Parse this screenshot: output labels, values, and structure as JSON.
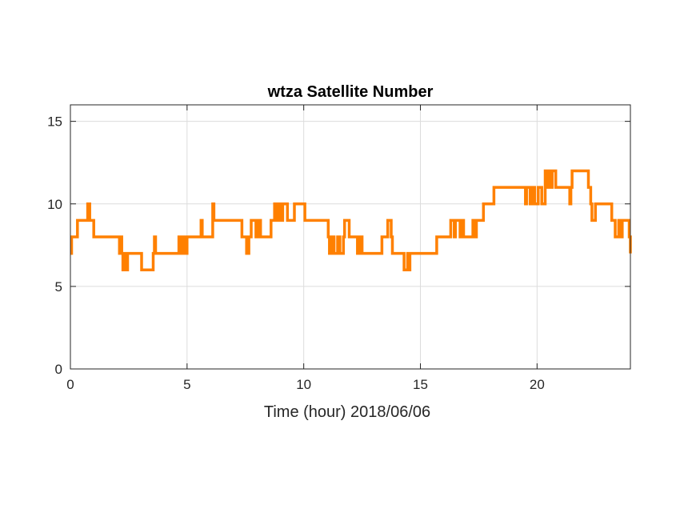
{
  "chart_data": {
    "type": "line",
    "title": "wtza Satellite Number",
    "xlabel": "Time (hour)  2018/06/06",
    "ylabel": "",
    "xlim": [
      0,
      24
    ],
    "ylim": [
      0,
      16
    ],
    "xticks": [
      0,
      5,
      10,
      15,
      20
    ],
    "yticks": [
      0,
      5,
      10,
      15
    ],
    "xtick_labels": [
      "0",
      "5",
      "10",
      "15",
      "20"
    ],
    "ytick_labels": [
      "0",
      "5",
      "10",
      "15"
    ],
    "grid": true,
    "line_style": "step",
    "series": [
      {
        "name": "",
        "color": "#ff8000",
        "x": [
          0,
          0.05,
          0.25,
          0.3,
          0.5,
          0.7,
          0.74,
          0.77,
          0.8,
          0.83,
          0.9,
          1.0,
          2.05,
          2.1,
          2.15,
          2.2,
          2.25,
          2.35,
          2.4,
          2.45,
          2.75,
          2.85,
          2.95,
          3.05,
          3.45,
          3.55,
          3.6,
          3.65,
          3.7,
          4.65,
          4.7,
          4.75,
          4.8,
          4.85,
          4.95,
          5.0,
          5.05,
          5.6,
          5.65,
          5.7,
          6.1,
          6.15,
          6.2,
          7.25,
          7.35,
          7.55,
          7.65,
          7.75,
          7.95,
          8.05,
          8.15,
          8.55,
          8.6,
          8.65,
          8.75,
          8.8,
          8.85,
          8.9,
          9.0,
          9.1,
          9.3,
          9.6,
          9.9,
          10.05,
          10.15,
          10.2,
          11.0,
          11.05,
          11.1,
          11.15,
          11.2,
          11.3,
          11.4,
          11.45,
          11.55,
          11.65,
          11.7,
          11.75,
          11.95,
          12.0,
          12.1,
          12.3,
          12.35,
          12.4,
          12.45,
          12.5,
          12.6,
          12.65,
          12.7,
          13.35,
          13.45,
          13.6,
          13.75,
          13.8,
          14.05,
          14.2,
          14.25,
          14.3,
          14.35,
          14.4,
          14.45,
          14.5,
          14.55,
          15.5,
          15.6,
          15.7,
          15.85,
          16.3,
          16.4,
          16.45,
          16.5,
          16.6,
          16.7,
          16.75,
          16.8,
          16.85,
          17.25,
          17.3,
          17.35,
          17.4,
          17.45,
          17.7,
          17.75,
          18.05,
          18.15,
          18.5,
          18.8,
          19.5,
          19.55,
          19.6,
          19.7,
          19.8,
          19.9,
          20.05,
          20.1,
          20.2,
          20.35,
          20.4,
          20.5,
          20.55,
          20.65,
          20.8,
          20.9,
          21.15,
          21.4,
          21.45,
          21.5,
          21.7,
          22.2,
          22.3,
          22.35,
          22.4,
          22.5,
          23.2,
          23.3,
          23.35,
          23.5,
          23.55,
          23.65,
          23.8,
          23.95,
          24.0
        ],
        "y": [
          7,
          8,
          8,
          9,
          9,
          9,
          10,
          9,
          10,
          9,
          9,
          8,
          8,
          7,
          8,
          7,
          6,
          7,
          6,
          7,
          7,
          7,
          7,
          6,
          6,
          7,
          8,
          7,
          7,
          8,
          7,
          8,
          7,
          8,
          7,
          8,
          8,
          9,
          8,
          8,
          10,
          9,
          9,
          9,
          8,
          7,
          8,
          9,
          8,
          9,
          8,
          8,
          9,
          9,
          10,
          9,
          9,
          10,
          9,
          10,
          9,
          10,
          10,
          9,
          9,
          9,
          9,
          8,
          7,
          7,
          8,
          7,
          7,
          8,
          7,
          7,
          8,
          9,
          8,
          8,
          8,
          7,
          8,
          7,
          8,
          7,
          7,
          7,
          7,
          8,
          8,
          9,
          8,
          7,
          7,
          7,
          7,
          6,
          6,
          6,
          7,
          6,
          7,
          7,
          7,
          8,
          8,
          9,
          9,
          8,
          9,
          9,
          8,
          9,
          9,
          8,
          9,
          8,
          8,
          9,
          9,
          10,
          10,
          10,
          11,
          11,
          11,
          10,
          11,
          11,
          10,
          11,
          10,
          11,
          11,
          10,
          12,
          11,
          12,
          11,
          12,
          11,
          11,
          11,
          10,
          11,
          12,
          12,
          11,
          10,
          9,
          9,
          10,
          9,
          9,
          8,
          9,
          8,
          9,
          9,
          8,
          7
        ]
      }
    ]
  }
}
